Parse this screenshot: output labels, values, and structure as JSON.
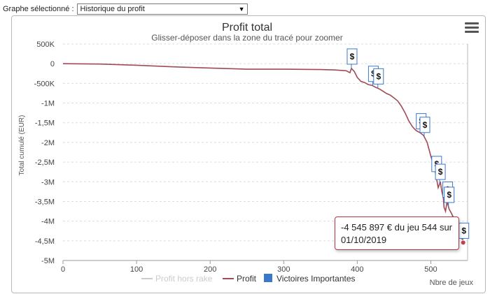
{
  "selector": {
    "label": "Graphe sélectionné :",
    "value": "Historique du profit"
  },
  "chart_data": {
    "type": "line",
    "title": "Profit total",
    "subtitle": "Glisser-déposer dans la zone du tracé pour zoomer",
    "xlabel": "Nbre de jeux",
    "ylabel": "Total cumulé (EUR)",
    "xlim": [
      0,
      550
    ],
    "ylim": [
      -5000000,
      500000
    ],
    "x_ticks": [
      0,
      100,
      200,
      300,
      400,
      500
    ],
    "y_ticks": [
      {
        "value": 500000,
        "label": "500K"
      },
      {
        "value": 0,
        "label": "0"
      },
      {
        "value": -500000,
        "label": "-500K"
      },
      {
        "value": -1000000,
        "label": "-1M"
      },
      {
        "value": -1500000,
        "label": "-1,5M"
      },
      {
        "value": -2000000,
        "label": "-2M"
      },
      {
        "value": -2500000,
        "label": "-2,5M"
      },
      {
        "value": -3000000,
        "label": "-3M"
      },
      {
        "value": -3500000,
        "label": "-3,5M"
      },
      {
        "value": -4000000,
        "label": "-4M"
      },
      {
        "value": -4500000,
        "label": "-4,5M"
      },
      {
        "value": -5000000,
        "label": "-5M"
      }
    ],
    "series": [
      {
        "name": "Profit hors rake",
        "color": "#cccccc",
        "visible": false,
        "x": [],
        "y": []
      },
      {
        "name": "Profit",
        "color": "#a04a55",
        "visible": true,
        "x": [
          0,
          50,
          100,
          150,
          200,
          250,
          300,
          350,
          370,
          385,
          390,
          392,
          396,
          400,
          405,
          410,
          415,
          420,
          425,
          430,
          435,
          440,
          445,
          450,
          455,
          460,
          465,
          470,
          475,
          480,
          485,
          490,
          495,
          500,
          505,
          508,
          510,
          513,
          515,
          517,
          518,
          520,
          522,
          525,
          528,
          530,
          535,
          540,
          544
        ],
        "y": [
          0,
          -10000,
          -40000,
          -80000,
          -110000,
          -140000,
          -140000,
          -150000,
          -160000,
          -180000,
          -230000,
          -120000,
          -200000,
          -350000,
          -450000,
          -480000,
          -530000,
          -550000,
          -600000,
          -640000,
          -700000,
          -760000,
          -800000,
          -870000,
          -950000,
          -1080000,
          -1250000,
          -1450000,
          -1600000,
          -1700000,
          -1750000,
          -1820000,
          -2000000,
          -2350000,
          -2650000,
          -2950000,
          -3150000,
          -3000000,
          -3250000,
          -3400000,
          -3650000,
          -3750000,
          -3500000,
          -3700000,
          -3800000,
          -3880000,
          -4000000,
          -4300000,
          -4545897
        ]
      }
    ],
    "markers": {
      "name": "Victoires Importantes",
      "color": "#3c78c8",
      "symbol": "$",
      "x": [
        392,
        421,
        428,
        486,
        491,
        507,
        512,
        522,
        524,
        544
      ]
    },
    "last_point": {
      "x": 544,
      "y": -4545897
    },
    "tooltip": "-4 545 897 € du jeu 544 sur 01/10/2019",
    "legend": [
      "Profit hors rake",
      "Profit",
      "Victoires Importantes"
    ],
    "legend_position": "bottom-center"
  }
}
